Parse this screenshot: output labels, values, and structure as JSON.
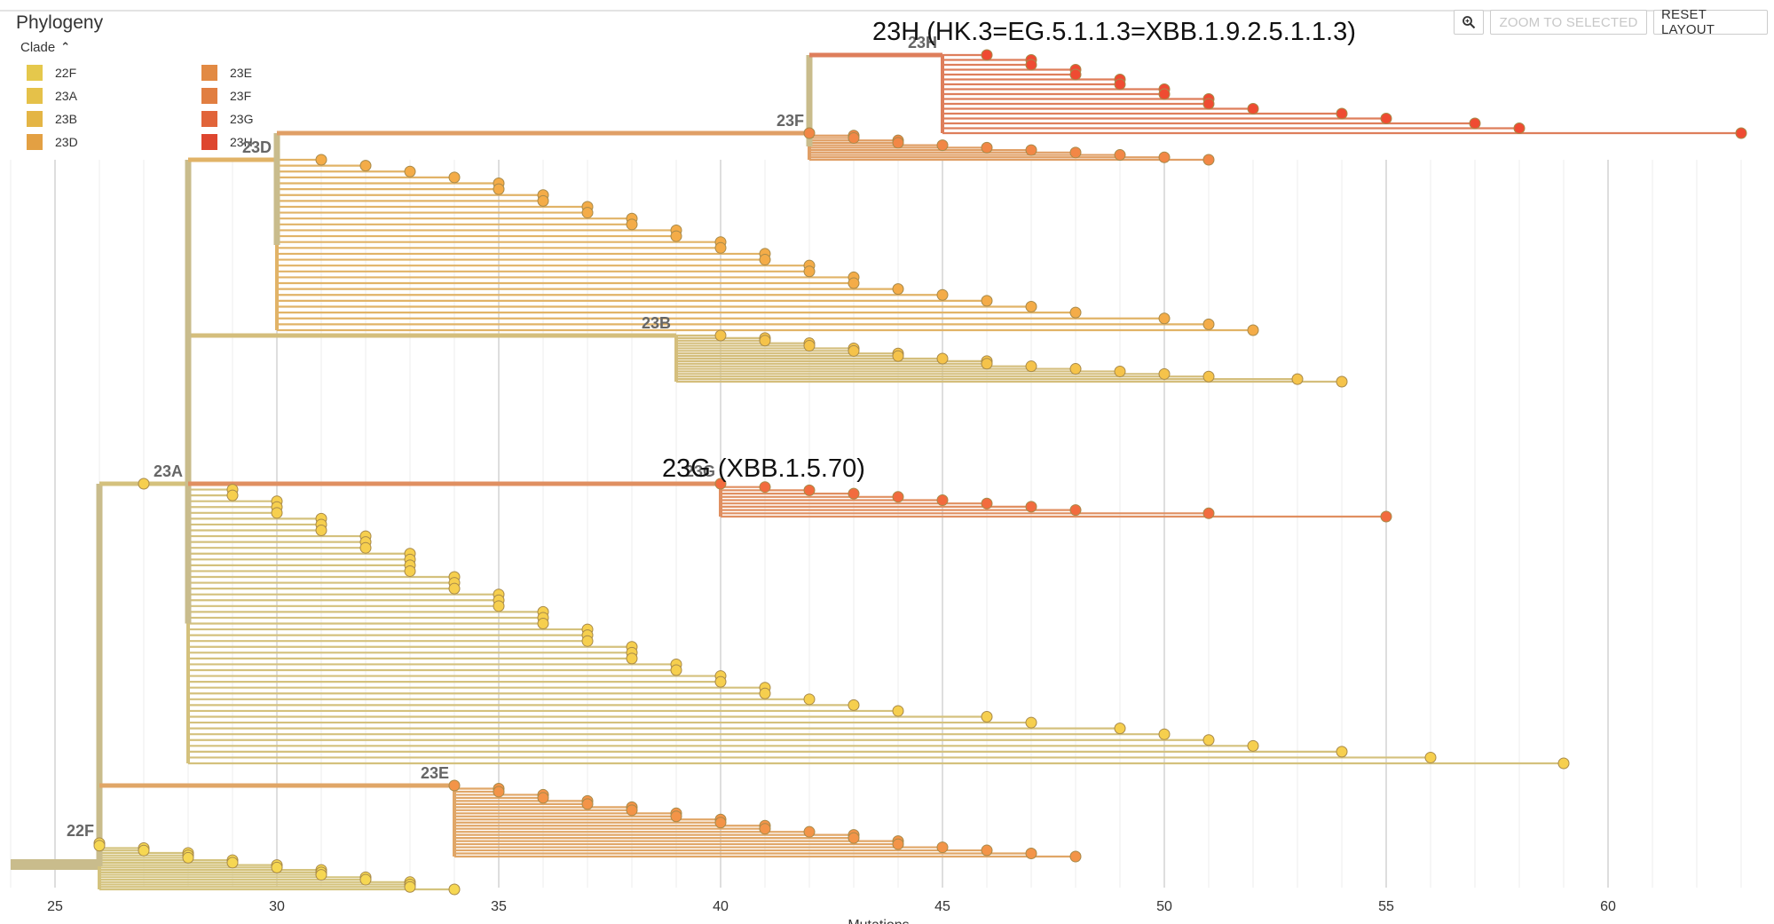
{
  "panel": {
    "title": "Phylogeny",
    "legend_title": "Clade"
  },
  "toolbar": {
    "zoom_icon": "magnifier-icon",
    "zoom_selected": "ZOOM TO SELECTED",
    "reset_layout": "RESET LAYOUT"
  },
  "legend": [
    {
      "label": "22F",
      "color": "#f6d752"
    },
    {
      "label": "23A",
      "color": "#f6cf4e"
    },
    {
      "label": "23B",
      "color": "#f5c34a"
    },
    {
      "label": "23D",
      "color": "#f4ac48"
    },
    {
      "label": "23E",
      "color": "#f39448"
    },
    {
      "label": "23F",
      "color": "#f28746"
    },
    {
      "label": "23G",
      "color": "#f26b3e"
    },
    {
      "label": "23H",
      "color": "#ef4b32"
    }
  ],
  "annotations": {
    "title_23H": "23H (HK.3=EG.5.1.1.3=XBB.1.9.2.5.1.1.3)",
    "title_23G": "23G (XBB.1.5.70)"
  },
  "chart_data": {
    "type": "tree",
    "xlabel": "Mutations",
    "xlim": [
      24,
      63.4
    ],
    "ticks": [
      25,
      30,
      35,
      40,
      45,
      50,
      55,
      60
    ],
    "branch_color_base": "#c9bc8c",
    "clades": [
      {
        "name": "22F",
        "node_divergence": 26,
        "color": "#f6d752",
        "tips": [
          26,
          26,
          27,
          27,
          28,
          28,
          28,
          29,
          29,
          30,
          30,
          31,
          31,
          31,
          32,
          32,
          33,
          33,
          33,
          34
        ]
      },
      {
        "name": "23A",
        "node_divergence": 28,
        "color": "#f6cf4e",
        "tips": [
          27,
          29,
          29,
          30,
          30,
          30,
          31,
          31,
          31,
          32,
          32,
          32,
          33,
          33,
          33,
          33,
          34,
          34,
          34,
          35,
          35,
          35,
          36,
          36,
          36,
          37,
          37,
          37,
          38,
          38,
          38,
          39,
          39,
          40,
          40,
          41,
          41,
          42,
          43,
          44,
          46,
          47,
          49,
          50,
          51,
          52,
          54,
          56,
          59
        ]
      },
      {
        "name": "23B",
        "node_divergence": 39,
        "color": "#f5c34a",
        "tips": [
          40,
          41,
          41,
          42,
          42,
          43,
          43,
          44,
          44,
          45,
          46,
          46,
          47,
          48,
          49,
          50,
          51,
          53,
          54
        ]
      },
      {
        "name": "23D",
        "node_divergence": 30,
        "color": "#f4ac48",
        "tips": [
          31,
          32,
          33,
          34,
          35,
          35,
          36,
          36,
          37,
          37,
          38,
          38,
          39,
          39,
          40,
          40,
          41,
          41,
          42,
          42,
          43,
          43,
          44,
          45,
          46,
          47,
          48,
          50,
          51,
          52
        ]
      },
      {
        "name": "23E",
        "node_divergence": 34,
        "color": "#f39448",
        "tips": [
          34,
          35,
          35,
          36,
          36,
          37,
          37,
          38,
          38,
          39,
          39,
          40,
          40,
          41,
          41,
          42,
          43,
          43,
          44,
          44,
          45,
          46,
          47,
          48
        ]
      },
      {
        "name": "23F",
        "node_divergence": 42,
        "color": "#f28746",
        "tips": [
          42,
          43,
          43,
          44,
          44,
          45,
          46,
          47,
          48,
          49,
          50,
          51
        ]
      },
      {
        "name": "23G",
        "node_divergence": 40,
        "color": "#f26b3e",
        "tips": [
          40,
          41,
          42,
          43,
          44,
          45,
          46,
          47,
          48,
          51,
          55
        ]
      },
      {
        "name": "23H",
        "node_divergence": 45,
        "color": "#ef4b32",
        "tips": [
          46,
          47,
          47,
          48,
          48,
          49,
          49,
          50,
          50,
          51,
          51,
          52,
          54,
          55,
          57,
          58,
          63
        ]
      }
    ]
  }
}
